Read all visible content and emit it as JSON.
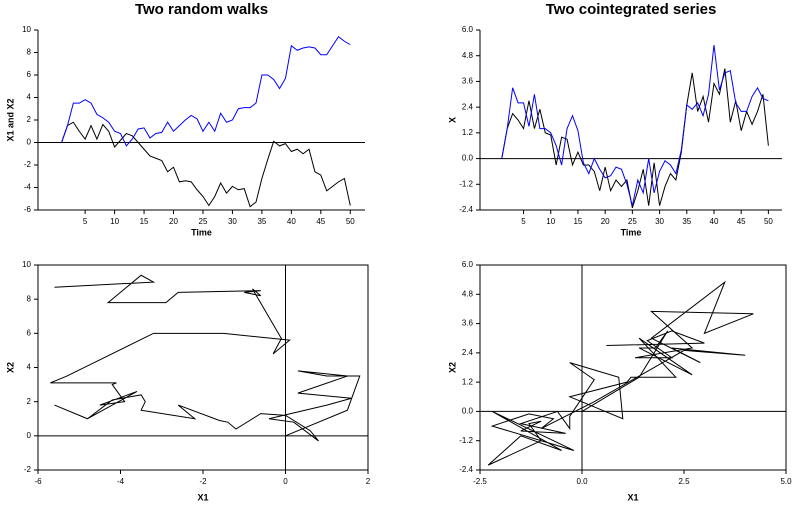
{
  "chart_data": [
    {
      "type": "line",
      "title": "Two random walks",
      "xlabel": "Time",
      "ylabel": "X1 and X2",
      "x": [
        1,
        2,
        3,
        4,
        5,
        6,
        7,
        8,
        9,
        10,
        11,
        12,
        13,
        14,
        15,
        16,
        17,
        18,
        19,
        20,
        21,
        22,
        23,
        24,
        25,
        26,
        27,
        28,
        29,
        30,
        31,
        32,
        33,
        34,
        35,
        36,
        37,
        38,
        39,
        40,
        41,
        42,
        43,
        44,
        45,
        46,
        47,
        48,
        49,
        50
      ],
      "series": [
        {
          "color": "#000000",
          "values": [
            0,
            1.5,
            1.8,
            1.0,
            0.3,
            1.5,
            0.3,
            1.6,
            1.0,
            -0.4,
            0.2,
            0.8,
            0.6,
            0,
            -0.6,
            -1.2,
            -1.4,
            -1.6,
            -2.6,
            -2.2,
            -3.5,
            -3.4,
            -3.5,
            -4.2,
            -4.8,
            -5.6,
            -4.8,
            -3.6,
            -4.5,
            -3.9,
            -4.2,
            -4.1,
            -5.7,
            -5.3,
            -3.2,
            -1.5,
            0.1,
            -0.3,
            -0.1,
            -0.8,
            -0.6,
            -1.0,
            -0.6,
            -2.6,
            -2.9,
            -4.3,
            -3.9,
            -3.5,
            -3.2,
            -5.6
          ]
        },
        {
          "color": "#0000ff",
          "values": [
            0,
            1.5,
            3.5,
            3.5,
            3.8,
            3.5,
            2.5,
            2.2,
            1.8,
            1.0,
            0.8,
            -0.3,
            0.3,
            1.2,
            1.3,
            0.4,
            0.8,
            0.9,
            1.8,
            1.0,
            1.5,
            2.0,
            2.4,
            2.1,
            1.0,
            1.8,
            1.0,
            2.6,
            1.8,
            2.0,
            3.0,
            3.1,
            3.1,
            3.5,
            6.0,
            6.0,
            5.6,
            4.8,
            5.7,
            8.6,
            8.2,
            8.4,
            8.5,
            8.4,
            7.8,
            7.8,
            8.6,
            9.4,
            9.0,
            8.7
          ]
        }
      ],
      "xlim": [
        -3,
        52.5
      ],
      "xticks": [
        5,
        10,
        15,
        20,
        25,
        30,
        35,
        40,
        45,
        50
      ],
      "ylim": [
        -6,
        10
      ],
      "yticks": [
        -6,
        -4,
        -2,
        0,
        2,
        4,
        6,
        8,
        10
      ]
    },
    {
      "type": "line",
      "title": "Two cointegrated series",
      "xlabel": "Time",
      "ylabel": "X",
      "x": [
        1,
        2,
        3,
        4,
        5,
        6,
        7,
        8,
        9,
        10,
        11,
        12,
        13,
        14,
        15,
        16,
        17,
        18,
        19,
        20,
        21,
        22,
        23,
        24,
        25,
        26,
        27,
        28,
        29,
        30,
        31,
        32,
        33,
        34,
        35,
        36,
        37,
        38,
        39,
        40,
        41,
        42,
        43,
        44,
        45,
        46,
        47,
        48,
        49,
        50
      ],
      "series": [
        {
          "color": "#000000",
          "values": [
            0,
            1.4,
            2.1,
            1.8,
            1.4,
            2.7,
            1.4,
            2.3,
            1.2,
            1.1,
            -0.3,
            1.0,
            0.9,
            -0.3,
            0.3,
            -0.3,
            -0.3,
            -0.6,
            -1.5,
            -0.4,
            -1.5,
            -1.0,
            -1.3,
            -1.0,
            -2.3,
            -1.5,
            -0.5,
            -2.2,
            -0.2,
            -2.2,
            -1.3,
            -0.7,
            -1.0,
            0.3,
            2.5,
            4.0,
            2.2,
            2.9,
            1.7,
            3.5,
            3.0,
            4.2,
            1.7,
            2.7,
            1.3,
            2.2,
            1.6,
            2.2,
            3.0,
            0.6
          ]
        },
        {
          "color": "#0000ff",
          "values": [
            0,
            1.4,
            3.3,
            2.6,
            2.6,
            1.5,
            3.0,
            1.4,
            1.4,
            1.2,
            0.6,
            -0.3,
            1.4,
            2.0,
            1.3,
            -0.2,
            -0.7,
            0.0,
            -0.5,
            -0.9,
            -0.8,
            -0.4,
            -0.5,
            -1.2,
            -2.2,
            -1.0,
            -1.6,
            0.0,
            -1.6,
            -0.6,
            -0.1,
            -0.3,
            -0.7,
            0.4,
            2.5,
            2.3,
            2.6,
            2.0,
            3.0,
            5.3,
            3.2,
            4.0,
            4.1,
            2.6,
            2.2,
            2.2,
            2.9,
            3.3,
            2.8,
            2.7
          ]
        }
      ],
      "xlim": [
        -3,
        52.5
      ],
      "xticks": [
        5,
        10,
        15,
        20,
        25,
        30,
        35,
        40,
        45,
        50
      ],
      "ylim": [
        -2.4,
        6.0
      ],
      "yticks": [
        -2.4,
        -1.2,
        {
          "value": 0,
          "label": "0.0"
        },
        1.2,
        2.4,
        3.6,
        4.8,
        {
          "value": 6,
          "label": "6.0"
        }
      ]
    },
    {
      "type": "path",
      "xlabel": "X1",
      "ylabel": "X2",
      "xlim": [
        -6,
        2
      ],
      "xticks": [
        -6,
        -4,
        -2,
        0,
        2
      ],
      "ylim": [
        -2,
        10
      ],
      "yticks": [
        -2,
        0,
        2,
        4,
        6,
        8,
        10
      ]
    },
    {
      "type": "path",
      "xlabel": "X1",
      "ylabel": "X2",
      "xlim": [
        -2.5,
        5
      ],
      "xticks": [
        -2.5,
        {
          "value": 0,
          "label": "0.0"
        },
        2.5,
        {
          "value": 5,
          "label": "5.0"
        }
      ],
      "ylim": [
        -2.4,
        6.0
      ],
      "yticks": [
        -2.4,
        -1.2,
        {
          "value": 0,
          "label": "0.0"
        },
        1.2,
        2.4,
        3.6,
        4.8,
        {
          "value": 6,
          "label": "6.0"
        }
      ]
    }
  ]
}
